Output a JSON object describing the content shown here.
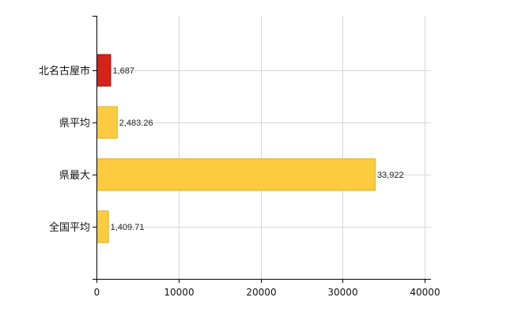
{
  "chart_data": {
    "type": "bar",
    "orientation": "horizontal",
    "categories": [
      "北名古屋市",
      "県平均",
      "県最大",
      "全国平均"
    ],
    "values": [
      1687,
      2483.26,
      33922,
      1409.71
    ],
    "value_labels": [
      "1,687",
      "2,483.26",
      "33,922",
      "1,409.71"
    ],
    "xlim": [
      0,
      40000
    ],
    "x_ticks": [
      0,
      10000,
      20000,
      30000,
      40000
    ],
    "x_tick_labels": [
      "0",
      "10000",
      "20000",
      "30000",
      "40000"
    ],
    "grid": true,
    "legend": "none",
    "colors": {
      "highlight": "#d4231b",
      "highlight_edge": "#9e120c",
      "default": "#fccb3f",
      "default_edge": "#e2ab1e",
      "grid": "#d6d6d6",
      "axis": "#000000"
    },
    "highlight_index": 0
  }
}
